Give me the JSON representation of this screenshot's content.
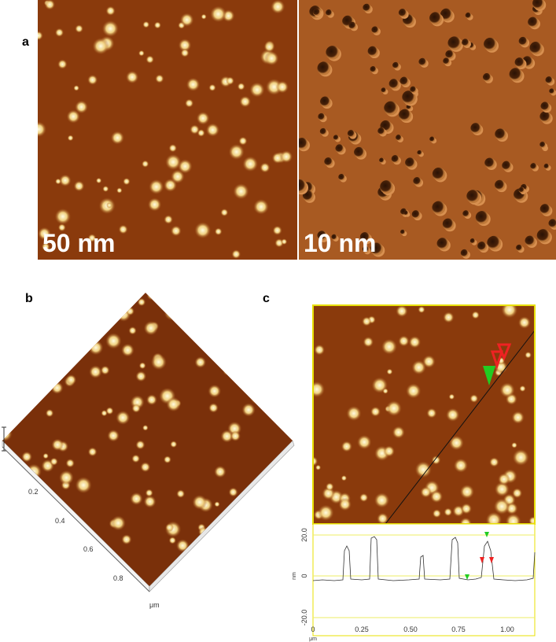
{
  "panel_a": {
    "label": "a",
    "left_image": {
      "caption": "50 nm"
    },
    "right_image": {
      "caption": "10 nm"
    }
  },
  "panel_b": {
    "label": "b",
    "axis_ticks": [
      "0.2",
      "0.4",
      "0.6",
      "0.8"
    ],
    "axis_unit": "μm"
  },
  "panel_c": {
    "label": "c",
    "profile": {
      "y_ticks": [
        "20.0",
        "0",
        "-20.0"
      ],
      "y_unit": "nm",
      "x_ticks": [
        "0",
        "0.25",
        "0.50",
        "0.75",
        "1.00"
      ],
      "x_unit": "μm"
    }
  }
}
